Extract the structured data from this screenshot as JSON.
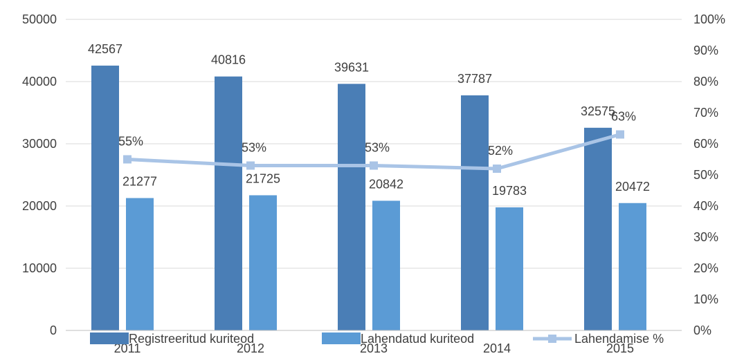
{
  "chart_data": {
    "type": "bar",
    "title": "",
    "categories": [
      "2011",
      "2012",
      "2013",
      "2014",
      "2015"
    ],
    "series": [
      {
        "name": "Registreeritud kuriteod",
        "type": "bar",
        "axis": "left",
        "values": [
          42567,
          40816,
          39631,
          37787,
          32575
        ],
        "color": "#4a7eb6"
      },
      {
        "name": "Lahendatud kuriteod",
        "type": "bar",
        "axis": "left",
        "values": [
          21277,
          21725,
          20842,
          19783,
          20472
        ],
        "color": "#5b9bd5"
      },
      {
        "name": "Lahendamise %",
        "type": "line",
        "axis": "right",
        "values": [
          55,
          53,
          53,
          52,
          63
        ],
        "labels": [
          "55%",
          "53%",
          "53%",
          "52%",
          "63%"
        ],
        "color": "#a9c4e6"
      }
    ],
    "y_left": {
      "min": 0,
      "max": 50000,
      "step": 10000,
      "ticks": [
        "0",
        "10000",
        "20000",
        "30000",
        "40000",
        "50000"
      ]
    },
    "y_right": {
      "min": 0,
      "max": 100,
      "step": 10,
      "ticks": [
        "0%",
        "10%",
        "20%",
        "30%",
        "40%",
        "50%",
        "60%",
        "70%",
        "80%",
        "90%",
        "100%"
      ]
    },
    "grid": true,
    "legend_position": "bottom"
  }
}
